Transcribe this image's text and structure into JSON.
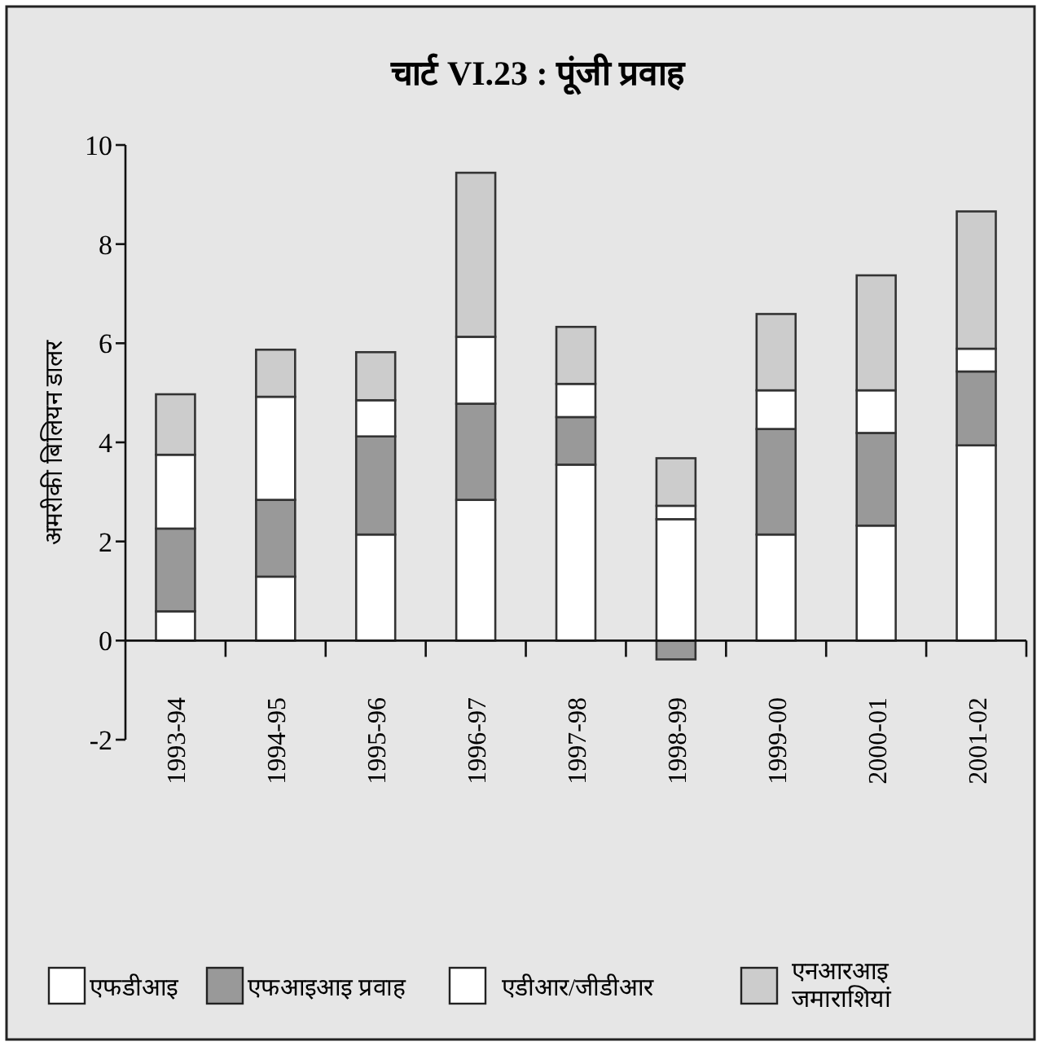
{
  "chart_data": {
    "type": "bar",
    "stacked": true,
    "title": "**चार्ट VI.23 : पूंजी प्रवाह**",
    "ylabel": "अमरीकी बिलियन डालर",
    "categories": [
      "1993-94",
      "1994-95",
      "1995-96",
      "1996-97",
      "1997-98",
      "1998-99",
      "1999-00",
      "2000-01",
      "2001-02"
    ],
    "series": [
      {
        "name": "एफडीआइ",
        "color": "#ffffff",
        "values": [
          0.59,
          1.29,
          2.14,
          2.84,
          3.55,
          2.45,
          2.14,
          2.32,
          3.94
        ]
      },
      {
        "name": "एफआइआइ प्रवाह",
        "color": "#999999",
        "values": [
          1.67,
          1.55,
          1.98,
          1.94,
          0.96,
          -0.38,
          2.13,
          1.87,
          1.49
        ]
      },
      {
        "name": "एडीआर/जीडीआर",
        "color": "#ffffff",
        "values": [
          1.49,
          2.08,
          0.73,
          1.35,
          0.67,
          0.27,
          0.78,
          0.86,
          0.46
        ]
      },
      {
        "name": "एनआरआइ जमाराशियां",
        "color": "#cccccc",
        "values": [
          1.22,
          0.95,
          0.97,
          3.31,
          1.15,
          0.96,
          1.54,
          2.32,
          2.77
        ]
      }
    ],
    "ylim": [
      -2,
      10
    ],
    "yticks": [
      -2,
      0,
      2,
      4,
      6,
      8,
      10
    ],
    "legend": "bottom"
  }
}
